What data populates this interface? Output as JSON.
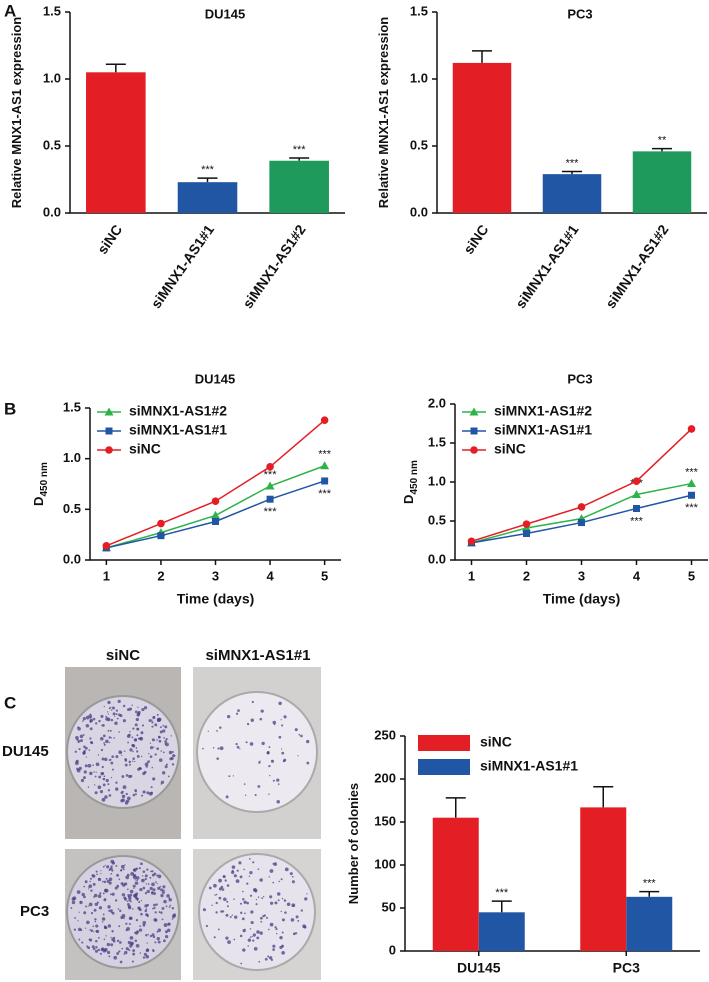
{
  "panels": [
    "A",
    "B",
    "C"
  ],
  "colony_assay": {
    "columns": [
      "siNC",
      "siMNX1-AS1#1"
    ],
    "rows": [
      "DU145",
      "PC3"
    ]
  },
  "chart_data": [
    {
      "type": "bar",
      "title": "DU145",
      "y_label": "Relative MNX1-AS1 expression",
      "categories": [
        "siNC",
        "siMNX1-AS1#1",
        "siMNX1-AS1#2"
      ],
      "values": [
        1.05,
        0.23,
        0.39
      ],
      "errors": [
        0.06,
        0.03,
        0.02
      ],
      "value_annotations": [
        null,
        "***",
        "***"
      ],
      "colors": [
        "#e31e24",
        "#2156a5",
        "#1e9a5c"
      ],
      "ylim": [
        0,
        1.5
      ],
      "yticks": [
        {
          "value": 0,
          "label": "0.0"
        },
        0.5,
        {
          "value": 1,
          "label": "1.0"
        },
        1.5
      ]
    },
    {
      "type": "bar",
      "title": "PC3",
      "y_label": "Relative MNX1-AS1 expression",
      "categories": [
        "siNC",
        "siMNX1-AS1#1",
        "siMNX1-AS1#2"
      ],
      "values": [
        1.12,
        0.29,
        0.46
      ],
      "errors": [
        0.09,
        0.02,
        0.02
      ],
      "value_annotations": [
        null,
        "***",
        "**"
      ],
      "colors": [
        "#e31e24",
        "#2156a5",
        "#1e9a5c"
      ],
      "ylim": [
        0,
        1.5
      ],
      "yticks": [
        {
          "value": 0,
          "label": "0.0"
        },
        0.5,
        {
          "value": 1,
          "label": "1.0"
        },
        1.5
      ]
    },
    {
      "type": "line",
      "title": "DU145",
      "x_label": "Time (days)",
      "y_label": "D",
      "y_label_sub": "450 nm",
      "x": [
        1,
        2,
        3,
        4,
        5
      ],
      "xlim": [
        0.7,
        5.3
      ],
      "xticks": [
        1,
        2,
        3,
        4,
        5
      ],
      "ylim": [
        0,
        1.5
      ],
      "yticks": [
        {
          "value": 0,
          "label": "0.0"
        },
        0.5,
        {
          "value": 1,
          "label": "1.0"
        },
        1.5
      ],
      "series": [
        {
          "name": "siMNX1-AS1#2",
          "color": "#2db34a",
          "marker": "triangle",
          "values": [
            0.12,
            0.27,
            0.44,
            0.73,
            0.93
          ],
          "annotations": [
            null,
            null,
            null,
            "***",
            "***"
          ]
        },
        {
          "name": "siMNX1-AS1#1",
          "color": "#2156a5",
          "marker": "square",
          "values": [
            0.12,
            0.24,
            0.38,
            0.6,
            0.78
          ],
          "annotations": [
            null,
            null,
            null,
            "***",
            "***"
          ]
        },
        {
          "name": "siNC",
          "color": "#e31e24",
          "marker": "circle",
          "values": [
            0.14,
            0.36,
            0.58,
            0.92,
            1.38
          ]
        }
      ]
    },
    {
      "type": "line",
      "title": "PC3",
      "x_label": "Time (days)",
      "y_label": "D",
      "y_label_sub": "450 nm",
      "x": [
        1,
        2,
        3,
        4,
        5
      ],
      "xlim": [
        0.7,
        5.3
      ],
      "xticks": [
        1,
        2,
        3,
        4,
        5
      ],
      "ylim": [
        0,
        2
      ],
      "yticks": [
        {
          "value": 0,
          "label": "0.0"
        },
        0.5,
        {
          "value": 1,
          "label": "1.0"
        },
        1.5,
        {
          "value": 2,
          "label": "2.0"
        }
      ],
      "series": [
        {
          "name": "siMNX1-AS1#2",
          "color": "#2db34a",
          "marker": "triangle",
          "values": [
            0.22,
            0.41,
            0.53,
            0.84,
            0.98
          ],
          "annotations": [
            null,
            null,
            null,
            "***",
            "***"
          ]
        },
        {
          "name": "siMNX1-AS1#1",
          "color": "#2156a5",
          "marker": "square",
          "values": [
            0.22,
            0.34,
            0.48,
            0.66,
            0.83
          ],
          "annotations": [
            null,
            null,
            null,
            "***",
            "***"
          ]
        },
        {
          "name": "siNC",
          "color": "#e31e24",
          "marker": "circle",
          "values": [
            0.24,
            0.46,
            0.68,
            1.01,
            1.68
          ]
        }
      ]
    },
    {
      "type": "bar",
      "y_label": "Number of colonies",
      "categories": [
        "DU145",
        "PC3"
      ],
      "ylim": [
        0,
        250
      ],
      "yticks": [
        0,
        50,
        100,
        150,
        200,
        250
      ],
      "series": [
        {
          "name": "siNC",
          "color": "#e31e24",
          "values": [
            155,
            167
          ],
          "errors": [
            23,
            24
          ]
        },
        {
          "name": "siMNX1-AS1#1",
          "color": "#2156a5",
          "values": [
            45,
            63
          ],
          "errors": [
            13,
            6
          ],
          "annotations": [
            "***",
            "***"
          ]
        }
      ]
    }
  ]
}
